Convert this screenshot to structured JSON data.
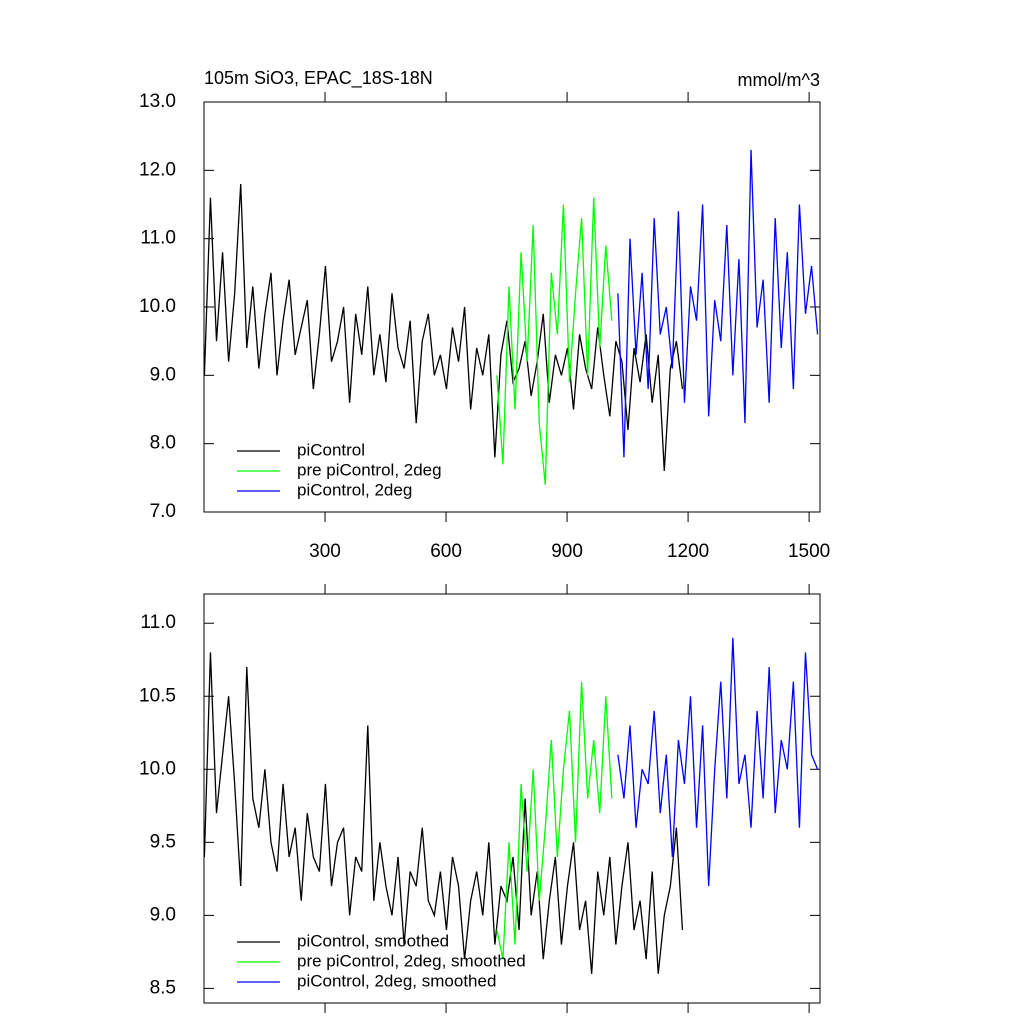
{
  "chart_data": [
    {
      "type": "line",
      "title": "105m SiO3, EPAC_18S-18N",
      "units": "mmol/m^3",
      "xlim": [
        0,
        1527
      ],
      "xticks": [
        300,
        600,
        900,
        1200,
        1500
      ],
      "show_xtick_labels": true,
      "ylim": [
        7,
        13
      ],
      "yticks": [
        {
          "value": 7,
          "label": "7.0"
        },
        {
          "value": 8,
          "label": "8.0"
        },
        {
          "value": 9,
          "label": "9.0"
        },
        {
          "value": 10,
          "label": "10.0"
        },
        {
          "value": 11,
          "label": "11.0"
        },
        {
          "value": 12,
          "label": "12.0"
        },
        {
          "value": 13,
          "label": "13.0"
        }
      ],
      "legend": "lower left",
      "series": [
        {
          "name": "piControl",
          "color": "#000000",
          "x": [
            1,
            16,
            31,
            46,
            61,
            76,
            91,
            106,
            121,
            136,
            151,
            166,
            181,
            196,
            211,
            226,
            241,
            256,
            271,
            286,
            301,
            316,
            331,
            346,
            361,
            376,
            391,
            406,
            421,
            436,
            451,
            466,
            481,
            496,
            511,
            526,
            541,
            556,
            571,
            586,
            601,
            616,
            631,
            646,
            661,
            676,
            691,
            706,
            721,
            736,
            751,
            766,
            781,
            796,
            811,
            826,
            841,
            856,
            871,
            886,
            901,
            916,
            931,
            946,
            961,
            976,
            991,
            1006,
            1021,
            1036,
            1051,
            1066,
            1081,
            1096,
            1111,
            1126,
            1141,
            1156,
            1171,
            1186
          ],
          "values": [
            9.0,
            11.6,
            9.5,
            10.8,
            9.2,
            10.2,
            11.8,
            9.4,
            10.3,
            9.1,
            9.9,
            10.5,
            9.0,
            9.8,
            10.4,
            9.3,
            9.7,
            10.1,
            8.8,
            9.6,
            10.6,
            9.2,
            9.5,
            10.0,
            8.6,
            9.9,
            9.3,
            10.3,
            9.0,
            9.6,
            8.9,
            10.2,
            9.4,
            9.1,
            9.8,
            8.3,
            9.5,
            9.9,
            9.0,
            9.3,
            8.8,
            9.7,
            9.2,
            10.0,
            8.5,
            9.4,
            9.0,
            9.6,
            7.8,
            9.3,
            9.8,
            8.9,
            9.1,
            9.5,
            8.7,
            9.2,
            9.9,
            8.6,
            9.3,
            9.0,
            9.4,
            8.5,
            9.6,
            9.1,
            8.8,
            9.7,
            9.0,
            8.4,
            9.5,
            9.2,
            8.2,
            9.4,
            8.9,
            9.6,
            8.6,
            9.3,
            7.6,
            9.1,
            9.5,
            8.8
          ]
        },
        {
          "name": "pre piControl, 2deg",
          "color": "#00ff00",
          "x": [
            726,
            741,
            756,
            771,
            786,
            801,
            816,
            831,
            846,
            861,
            876,
            891,
            906,
            921,
            936,
            951,
            966,
            981,
            996,
            1011
          ],
          "values": [
            9.0,
            7.7,
            10.3,
            8.5,
            10.8,
            9.2,
            11.2,
            8.3,
            7.4,
            10.5,
            9.6,
            11.5,
            8.9,
            10.2,
            11.3,
            9.0,
            11.6,
            9.4,
            10.9,
            9.8
          ]
        },
        {
          "name": "piControl, 2deg",
          "color": "#0000ff",
          "x": [
            1026,
            1041,
            1056,
            1071,
            1086,
            1101,
            1116,
            1131,
            1146,
            1161,
            1176,
            1191,
            1206,
            1221,
            1236,
            1251,
            1266,
            1281,
            1296,
            1311,
            1326,
            1341,
            1356,
            1371,
            1386,
            1401,
            1416,
            1431,
            1446,
            1461,
            1476,
            1491,
            1506,
            1521
          ],
          "values": [
            10.2,
            7.8,
            11.0,
            9.3,
            10.5,
            8.8,
            11.3,
            9.6,
            10.0,
            9.1,
            11.4,
            8.6,
            10.3,
            9.8,
            11.5,
            8.4,
            10.1,
            9.5,
            11.2,
            9.0,
            10.7,
            8.3,
            12.3,
            9.7,
            10.4,
            8.6,
            11.3,
            9.4,
            10.8,
            8.8,
            11.5,
            9.9,
            10.6,
            9.6
          ]
        }
      ]
    },
    {
      "type": "line",
      "xlim": [
        0,
        1527
      ],
      "xticks": [
        300,
        600,
        900,
        1200,
        1500
      ],
      "show_xtick_labels": false,
      "ylim": [
        8.4,
        11.2
      ],
      "yticks": [
        {
          "value": 8.5,
          "label": "8.5"
        },
        {
          "value": 9,
          "label": "9.0"
        },
        {
          "value": 9.5,
          "label": "9.5"
        },
        {
          "value": 10,
          "label": "10.0"
        },
        {
          "value": 10.5,
          "label": "10.5"
        },
        {
          "value": 11,
          "label": "11.0"
        }
      ],
      "legend": "lower left",
      "series": [
        {
          "name": "piControl, smoothed",
          "color": "#000000",
          "x": [
            1,
            16,
            31,
            46,
            61,
            76,
            91,
            106,
            121,
            136,
            151,
            166,
            181,
            196,
            211,
            226,
            241,
            256,
            271,
            286,
            301,
            316,
            331,
            346,
            361,
            376,
            391,
            406,
            421,
            436,
            451,
            466,
            481,
            496,
            511,
            526,
            541,
            556,
            571,
            586,
            601,
            616,
            631,
            646,
            661,
            676,
            691,
            706,
            721,
            736,
            751,
            766,
            781,
            796,
            811,
            826,
            841,
            856,
            871,
            886,
            901,
            916,
            931,
            946,
            961,
            976,
            991,
            1006,
            1021,
            1036,
            1051,
            1066,
            1081,
            1096,
            1111,
            1126,
            1141,
            1156,
            1171,
            1186
          ],
          "values": [
            9.4,
            10.8,
            9.7,
            10.1,
            10.5,
            9.9,
            9.2,
            10.7,
            9.8,
            9.6,
            10.0,
            9.5,
            9.3,
            9.9,
            9.4,
            9.6,
            9.1,
            9.7,
            9.4,
            9.3,
            9.9,
            9.2,
            9.5,
            9.6,
            9.0,
            9.4,
            9.3,
            10.3,
            9.1,
            9.5,
            9.2,
            9.0,
            9.4,
            8.8,
            9.3,
            9.2,
            9.6,
            9.1,
            9.0,
            9.3,
            8.9,
            9.4,
            9.2,
            8.7,
            9.1,
            9.3,
            9.0,
            9.5,
            8.8,
            9.2,
            9.1,
            9.4,
            8.9,
            9.8,
            9.0,
            9.3,
            8.7,
            9.1,
            9.4,
            8.8,
            9.2,
            9.5,
            8.9,
            9.1,
            8.6,
            9.3,
            9.0,
            9.4,
            8.8,
            9.2,
            9.5,
            8.9,
            9.1,
            8.7,
            9.3,
            8.6,
            9.0,
            9.2,
            9.6,
            8.9
          ]
        },
        {
          "name": "pre piControl, 2deg, smoothed",
          "color": "#00ff00",
          "x": [
            726,
            741,
            756,
            771,
            786,
            801,
            816,
            831,
            846,
            861,
            876,
            891,
            906,
            921,
            936,
            951,
            966,
            981,
            996,
            1011
          ],
          "values": [
            8.9,
            8.7,
            9.5,
            8.8,
            9.9,
            9.3,
            10.0,
            9.1,
            9.6,
            10.2,
            9.4,
            10.0,
            10.4,
            9.5,
            10.6,
            9.8,
            10.2,
            9.7,
            10.5,
            9.8
          ]
        },
        {
          "name": "piControl, 2deg, smoothed",
          "color": "#0000ff",
          "x": [
            1026,
            1041,
            1056,
            1071,
            1086,
            1101,
            1116,
            1131,
            1146,
            1161,
            1176,
            1191,
            1206,
            1221,
            1236,
            1251,
            1266,
            1281,
            1296,
            1311,
            1326,
            1341,
            1356,
            1371,
            1386,
            1401,
            1416,
            1431,
            1446,
            1461,
            1476,
            1491,
            1506,
            1521
          ],
          "values": [
            10.1,
            9.8,
            10.3,
            9.6,
            10.0,
            9.9,
            10.4,
            9.7,
            10.1,
            9.4,
            10.2,
            9.9,
            10.5,
            9.6,
            10.3,
            9.2,
            10.0,
            10.6,
            9.8,
            10.9,
            9.9,
            10.1,
            9.6,
            10.4,
            9.8,
            10.7,
            9.7,
            10.2,
            10.0,
            10.6,
            9.6,
            10.8,
            10.1,
            10.0
          ]
        }
      ]
    }
  ]
}
